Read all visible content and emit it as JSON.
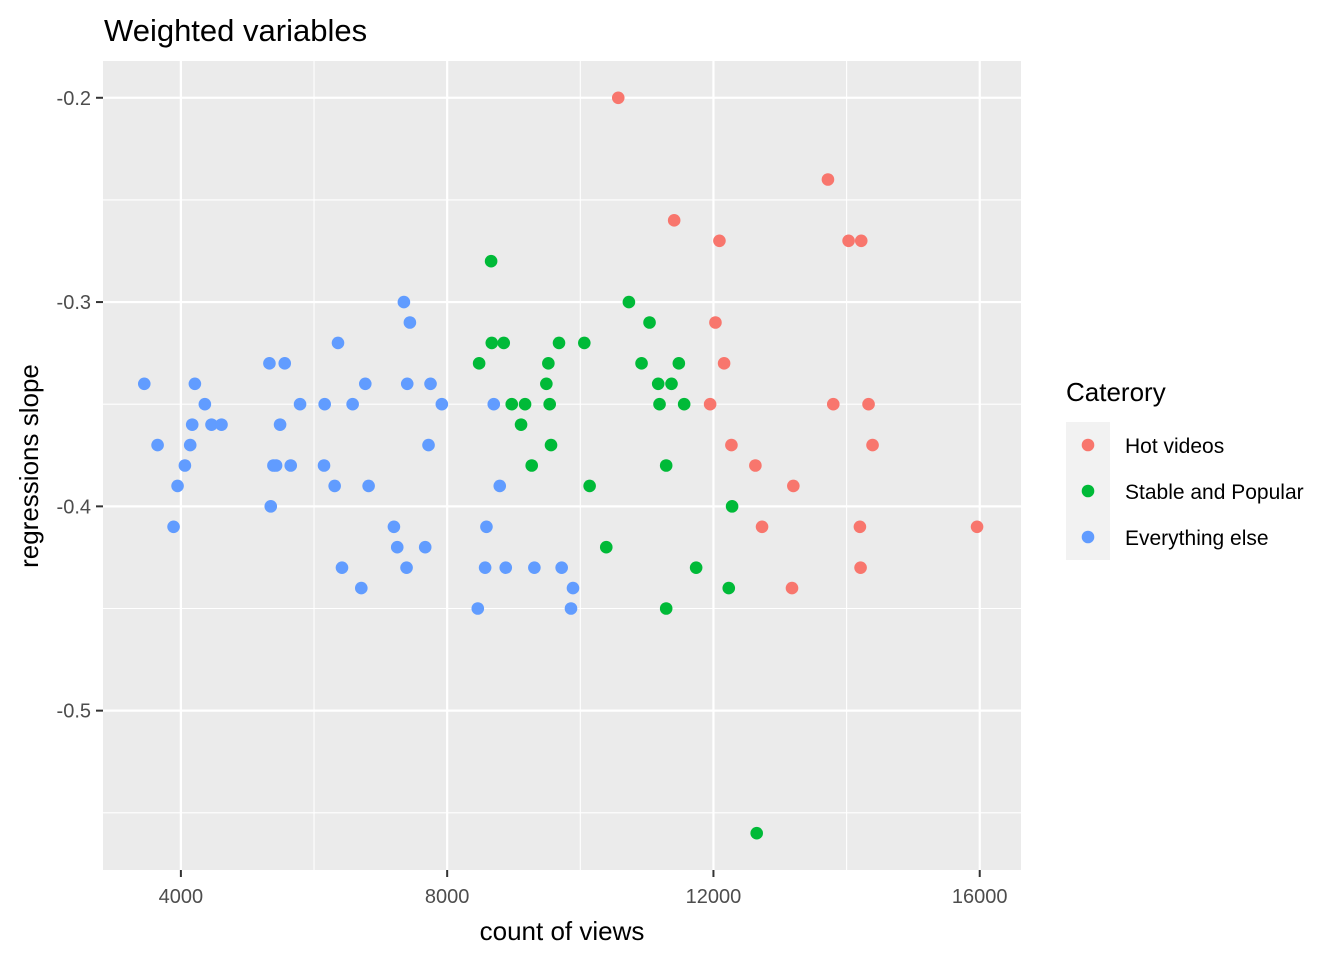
{
  "chart_data": {
    "type": "scatter",
    "title": "Weighted variables",
    "xlabel": "count of views",
    "ylabel": "regressions slope",
    "xlim": [
      2830,
      16620
    ],
    "ylim": [
      -0.578,
      -0.182
    ],
    "x_ticks": [
      4000,
      8000,
      12000,
      16000
    ],
    "x_tick_labels": [
      "4000",
      "8000",
      "12000",
      "16000"
    ],
    "y_ticks": [
      -0.2,
      -0.3,
      -0.4,
      -0.5
    ],
    "y_tick_labels": [
      "-0.2",
      "-0.3",
      "-0.4",
      "-0.5"
    ],
    "grid": true,
    "panel_background": "#ebebeb",
    "legend": {
      "title": "Caterory",
      "position": "right"
    },
    "series": [
      {
        "name": "Hot videos",
        "color": "#f8766d",
        "points": [
          [
            10570,
            -0.2
          ],
          [
            13720,
            -0.24
          ],
          [
            11410,
            -0.26
          ],
          [
            12090,
            -0.27
          ],
          [
            14030,
            -0.27
          ],
          [
            14220,
            -0.27
          ],
          [
            12030,
            -0.31
          ],
          [
            12160,
            -0.33
          ],
          [
            11950,
            -0.35
          ],
          [
            13800,
            -0.35
          ],
          [
            14330,
            -0.35
          ],
          [
            12270,
            -0.37
          ],
          [
            14390,
            -0.37
          ],
          [
            12630,
            -0.38
          ],
          [
            13200,
            -0.39
          ],
          [
            12730,
            -0.41
          ],
          [
            14200,
            -0.41
          ],
          [
            15960,
            -0.41
          ],
          [
            14210,
            -0.43
          ],
          [
            13180,
            -0.44
          ]
        ]
      },
      {
        "name": "Stable and Popular",
        "color": "#00ba38",
        "points": [
          [
            8660,
            -0.28
          ],
          [
            10730,
            -0.3
          ],
          [
            11040,
            -0.31
          ],
          [
            8670,
            -0.32
          ],
          [
            8850,
            -0.32
          ],
          [
            9680,
            -0.32
          ],
          [
            10060,
            -0.32
          ],
          [
            8480,
            -0.33
          ],
          [
            9520,
            -0.33
          ],
          [
            10920,
            -0.33
          ],
          [
            11480,
            -0.33
          ],
          [
            9490,
            -0.34
          ],
          [
            11170,
            -0.34
          ],
          [
            11370,
            -0.34
          ],
          [
            8970,
            -0.35
          ],
          [
            9170,
            -0.35
          ],
          [
            9540,
            -0.35
          ],
          [
            11190,
            -0.35
          ],
          [
            11560,
            -0.35
          ],
          [
            9110,
            -0.36
          ],
          [
            9560,
            -0.37
          ],
          [
            9270,
            -0.38
          ],
          [
            11290,
            -0.38
          ],
          [
            10140,
            -0.39
          ],
          [
            12280,
            -0.4
          ],
          [
            10390,
            -0.42
          ],
          [
            11740,
            -0.43
          ],
          [
            12230,
            -0.44
          ],
          [
            11290,
            -0.45
          ],
          [
            12650,
            -0.56
          ]
        ]
      },
      {
        "name": "Everything else",
        "color": "#619cff",
        "points": [
          [
            3450,
            -0.34
          ],
          [
            3650,
            -0.37
          ],
          [
            3890,
            -0.41
          ],
          [
            3950,
            -0.39
          ],
          [
            4060,
            -0.38
          ],
          [
            4140,
            -0.37
          ],
          [
            4170,
            -0.36
          ],
          [
            4210,
            -0.34
          ],
          [
            4360,
            -0.35
          ],
          [
            4460,
            -0.36
          ],
          [
            4610,
            -0.36
          ],
          [
            5330,
            -0.33
          ],
          [
            5350,
            -0.4
          ],
          [
            5390,
            -0.38
          ],
          [
            5430,
            -0.38
          ],
          [
            5490,
            -0.36
          ],
          [
            5560,
            -0.33
          ],
          [
            5650,
            -0.38
          ],
          [
            5790,
            -0.35
          ],
          [
            6160,
            -0.35
          ],
          [
            6150,
            -0.38
          ],
          [
            6310,
            -0.39
          ],
          [
            6360,
            -0.32
          ],
          [
            6420,
            -0.43
          ],
          [
            6580,
            -0.35
          ],
          [
            6710,
            -0.44
          ],
          [
            6770,
            -0.34
          ],
          [
            6820,
            -0.39
          ],
          [
            7200,
            -0.41
          ],
          [
            7250,
            -0.42
          ],
          [
            7350,
            -0.3
          ],
          [
            7390,
            -0.43
          ],
          [
            7400,
            -0.34
          ],
          [
            7440,
            -0.31
          ],
          [
            7670,
            -0.42
          ],
          [
            7720,
            -0.37
          ],
          [
            7750,
            -0.34
          ],
          [
            7920,
            -0.35
          ],
          [
            8460,
            -0.45
          ],
          [
            8570,
            -0.43
          ],
          [
            8590,
            -0.41
          ],
          [
            8700,
            -0.35
          ],
          [
            8790,
            -0.39
          ],
          [
            8880,
            -0.43
          ],
          [
            9310,
            -0.43
          ],
          [
            9720,
            -0.43
          ],
          [
            9860,
            -0.45
          ],
          [
            9890,
            -0.44
          ]
        ]
      }
    ]
  }
}
